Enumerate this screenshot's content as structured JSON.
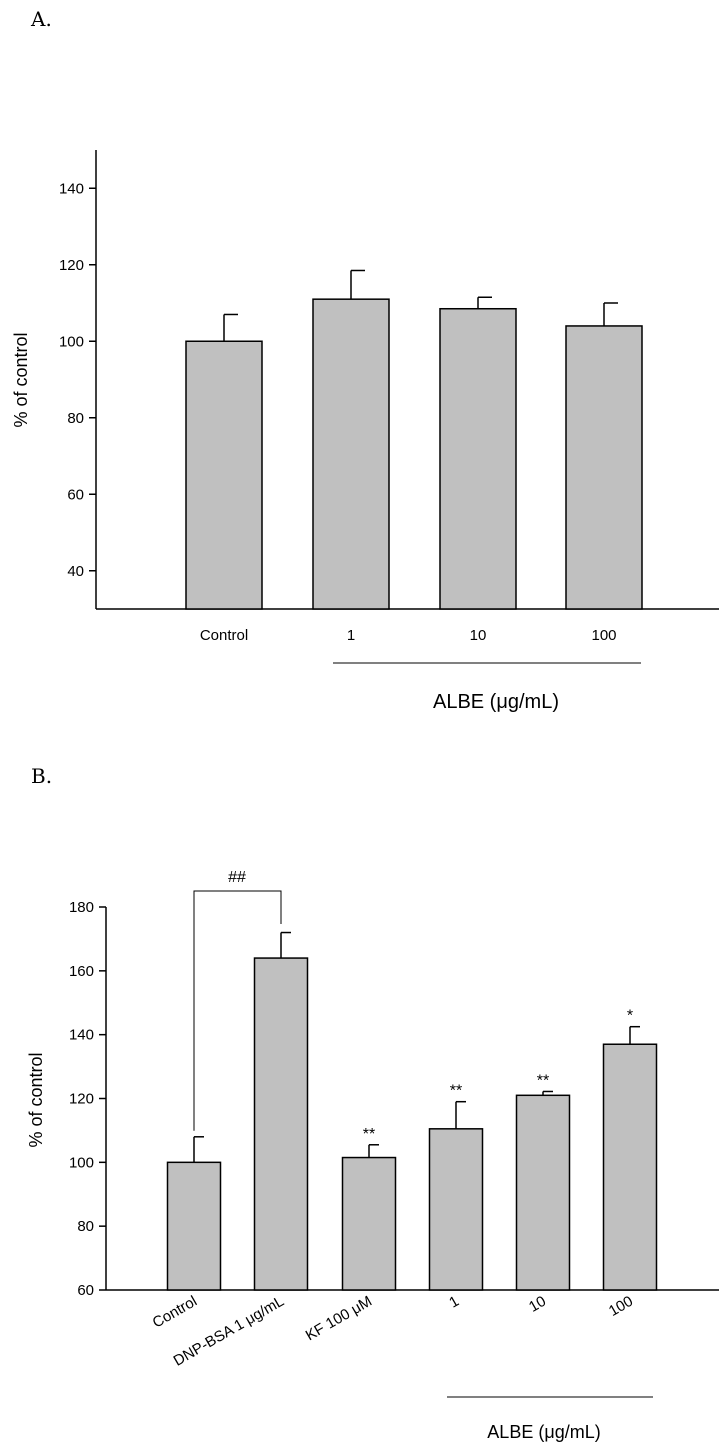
{
  "chart_data": [
    {
      "panel": "A.",
      "type": "bar",
      "ylabel": "% of control",
      "ylim": [
        30,
        150
      ],
      "yticks": [
        40,
        60,
        80,
        100,
        120,
        140
      ],
      "categories": [
        "Control",
        "1",
        "10",
        "100"
      ],
      "values": [
        100,
        111,
        108.5,
        104
      ],
      "errors": [
        7,
        7.5,
        3,
        6
      ],
      "annotations": [
        "",
        "",
        "",
        ""
      ],
      "group_label": "ALBE (μg/mL)",
      "grid": false
    },
    {
      "panel": "B.",
      "type": "bar",
      "ylabel": "% of control",
      "ylim": [
        60,
        180
      ],
      "yticks": [
        60,
        80,
        100,
        120,
        140,
        160,
        180
      ],
      "categories": [
        "Control",
        "DNP-BSA 1 μg/mL",
        "KF 100 μM",
        "1",
        "10",
        "100"
      ],
      "values": [
        100,
        164,
        101.5,
        110.5,
        121,
        137
      ],
      "errors": [
        8,
        8,
        4,
        8.5,
        1.2,
        5.5
      ],
      "annotations": [
        "",
        "",
        "**",
        "**",
        "**",
        "*"
      ],
      "bracket_label": "##",
      "group_label": "ALBE (μg/mL)",
      "grid": false
    }
  ]
}
